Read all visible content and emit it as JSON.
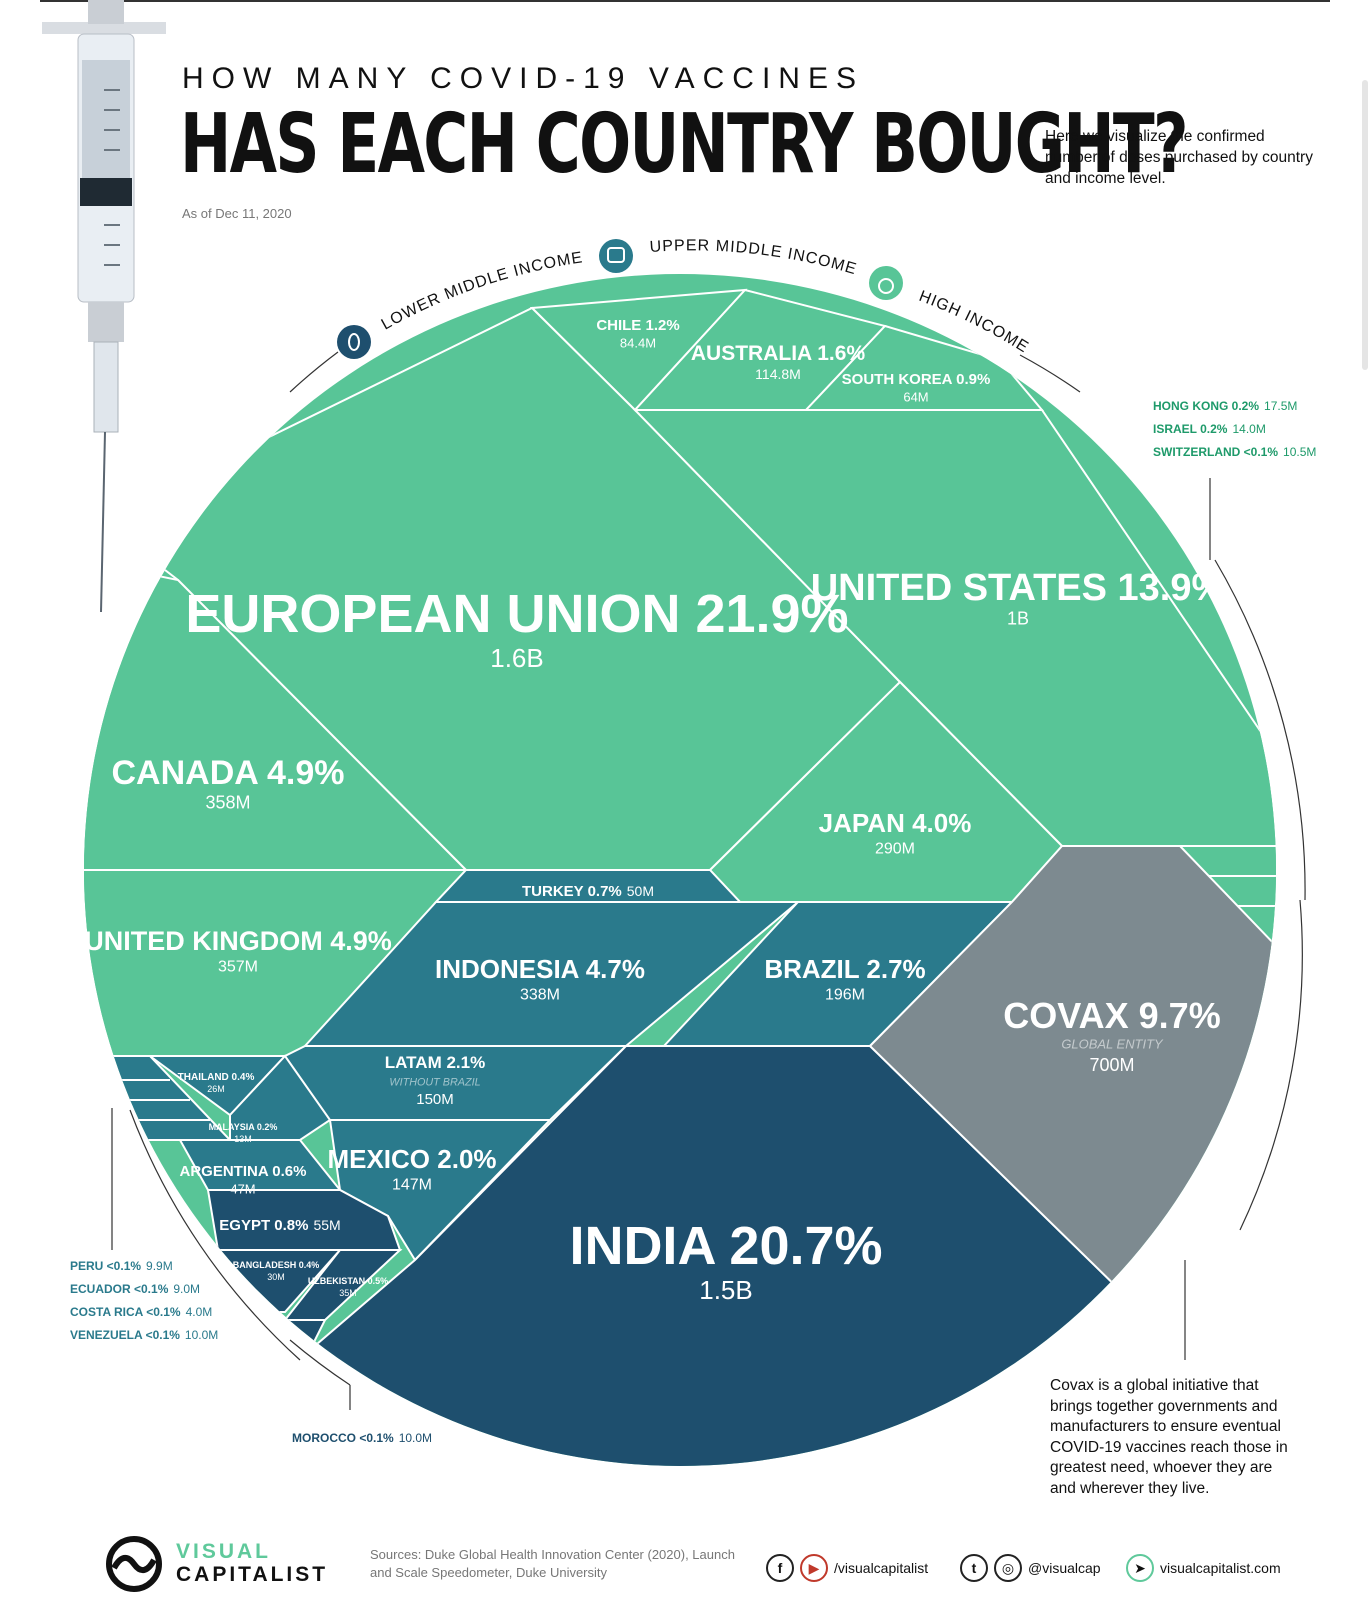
{
  "header": {
    "subtitle": "HOW MANY COVID-19 VACCINES",
    "title": "HAS EACH COUNTRY BOUGHT?",
    "intro": "Here we visualize the confirmed number of doses purchased by country and income level.",
    "as_of": "As of Dec 11, 2020"
  },
  "income_groups": {
    "lower_middle": "LOWER MIDDLE INCOME",
    "upper_middle": "UPPER MIDDLE INCOME",
    "high": "HIGH INCOME"
  },
  "colors": {
    "high_income": "#58c597",
    "upper_middle_income": "#2a7a8c",
    "lower_middle_income": "#1e4f6e",
    "global_entity": "#7d8a90",
    "brand_green": "#5fc99b"
  },
  "chart_data": {
    "type": "voronoi-treemap",
    "title": "HAS EACH COUNTRY BOUGHT?",
    "subtitle": "HOW MANY COVID-19 VACCINES",
    "unit": "doses",
    "segments": [
      {
        "name": "EUROPEAN UNION",
        "pct": "21.9%",
        "doses": "1.6B",
        "group": "high"
      },
      {
        "name": "UNITED STATES",
        "pct": "13.9%",
        "doses": "1B",
        "group": "high"
      },
      {
        "name": "CANADA",
        "pct": "4.9%",
        "doses": "358M",
        "group": "high"
      },
      {
        "name": "UNITED KINGDOM",
        "pct": "4.9%",
        "doses": "357M",
        "group": "high"
      },
      {
        "name": "JAPAN",
        "pct": "4.0%",
        "doses": "290M",
        "group": "high"
      },
      {
        "name": "AUSTRALIA",
        "pct": "1.6%",
        "doses": "114.8M",
        "group": "high"
      },
      {
        "name": "CHILE",
        "pct": "1.2%",
        "doses": "84.4M",
        "group": "high"
      },
      {
        "name": "SOUTH KOREA",
        "pct": "0.9%",
        "doses": "64M",
        "group": "high"
      },
      {
        "name": "HONG KONG",
        "pct": "0.2%",
        "doses": "17.5M",
        "group": "high"
      },
      {
        "name": "ISRAEL",
        "pct": "0.2%",
        "doses": "14.0M",
        "group": "high"
      },
      {
        "name": "SWITZERLAND",
        "pct": "<0.1%",
        "doses": "10.5M",
        "group": "high"
      },
      {
        "name": "TURKEY",
        "pct": "0.7%",
        "doses": "50M",
        "group": "upper_middle"
      },
      {
        "name": "INDONESIA",
        "pct": "4.7%",
        "doses": "338M",
        "group": "upper_middle"
      },
      {
        "name": "BRAZIL",
        "pct": "2.7%",
        "doses": "196M",
        "group": "upper_middle"
      },
      {
        "name": "LATAM",
        "pct": "2.1%",
        "doses": "150M",
        "note": "WITHOUT BRAZIL",
        "group": "upper_middle"
      },
      {
        "name": "MEXICO",
        "pct": "2.0%",
        "doses": "147M",
        "group": "upper_middle"
      },
      {
        "name": "THAILAND",
        "pct": "0.4%",
        "doses": "26M",
        "group": "upper_middle"
      },
      {
        "name": "MALAYSIA",
        "pct": "0.2%",
        "doses": "13M",
        "group": "upper_middle"
      },
      {
        "name": "ARGENTINA",
        "pct": "0.6%",
        "doses": "47M",
        "group": "upper_middle"
      },
      {
        "name": "PERU",
        "pct": "<0.1%",
        "doses": "9.9M",
        "group": "upper_middle"
      },
      {
        "name": "ECUADOR",
        "pct": "<0.1%",
        "doses": "9.0M",
        "group": "upper_middle"
      },
      {
        "name": "COSTA RICA",
        "pct": "<0.1%",
        "doses": "4.0M",
        "group": "upper_middle"
      },
      {
        "name": "VENEZUELA",
        "pct": "<0.1%",
        "doses": "10.0M",
        "group": "upper_middle"
      },
      {
        "name": "EGYPT",
        "pct": "0.8%",
        "doses": "55M",
        "group": "lower_middle"
      },
      {
        "name": "BANGLADESH",
        "pct": "0.4%",
        "doses": "30M",
        "group": "lower_middle"
      },
      {
        "name": "UZBEKISTAN",
        "pct": "0.5%",
        "doses": "35M",
        "group": "lower_middle"
      },
      {
        "name": "MOROCCO",
        "pct": "<0.1%",
        "doses": "10.0M",
        "group": "lower_middle"
      },
      {
        "name": "INDIA",
        "pct": "20.7%",
        "doses": "1.5B",
        "group": "lower_middle"
      },
      {
        "name": "COVAX",
        "pct": "9.7%",
        "doses": "700M",
        "note": "GLOBAL ENTITY",
        "group": "global"
      }
    ]
  },
  "covax_note": "Covax is a global initiative that brings together governments and manufacturers to ensure eventual COVID-19 vaccines reach those in greatest need, whoever they are and wherever they live.",
  "footer": {
    "logo_line1": "VISUAL",
    "logo_line2": "CAPITALIST",
    "sources": "Sources: Duke Global Health Innovation Center (2020), Launch and Scale Speedometer, Duke University",
    "social_fb_yt": "/visualcapitalist",
    "social_tw_ig": "@visualcap",
    "website": "visualcapitalist.com"
  }
}
